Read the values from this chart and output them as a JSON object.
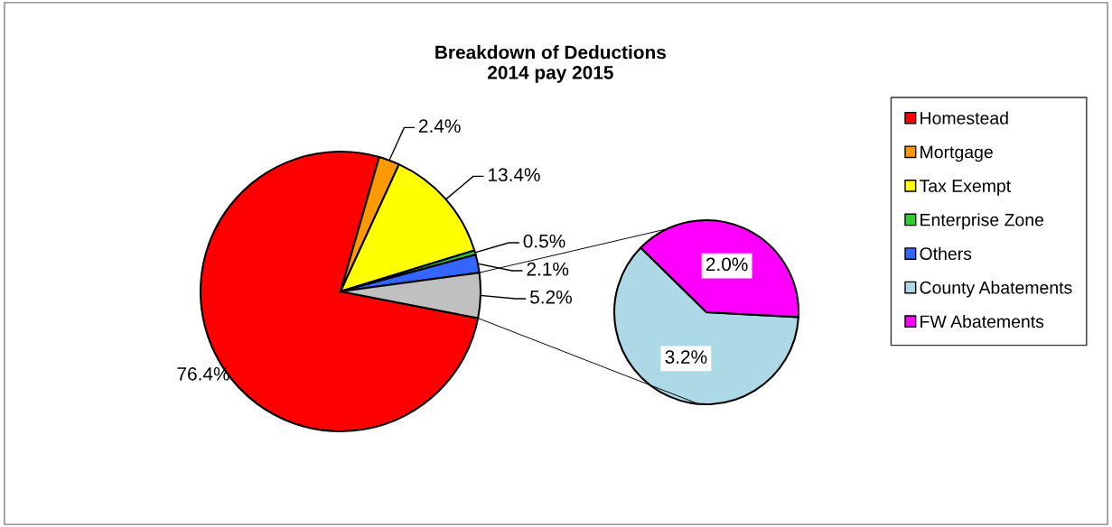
{
  "chart_data": [
    {
      "type": "pie",
      "title": "Breakdown of Deductions\n2014 pay 2015",
      "categories": [
        "Homestead",
        "Mortgage",
        "Tax Exempt",
        "Enterprise Zone",
        "Others",
        null
      ],
      "values": [
        76.4,
        2.4,
        13.4,
        0.5,
        2.1,
        5.2
      ],
      "value_labels": [
        "76.4%",
        "2.4%",
        "13.4%",
        "0.5%",
        "2.1%",
        "5.2%"
      ],
      "colors": [
        "#ff0000",
        "#ff9900",
        "#ffff00",
        "#33cc33",
        "#3366ff",
        "#c0c0c0"
      ],
      "legend": "right"
    },
    {
      "type": "pie",
      "categories": [
        "County Abatements",
        "FW Abatements"
      ],
      "values": [
        3.2,
        2.0
      ],
      "value_labels": [
        "3.2%",
        "2.0%"
      ],
      "colors": [
        "#add8e6",
        "#ff00ff"
      ],
      "legend": "right"
    }
  ]
}
